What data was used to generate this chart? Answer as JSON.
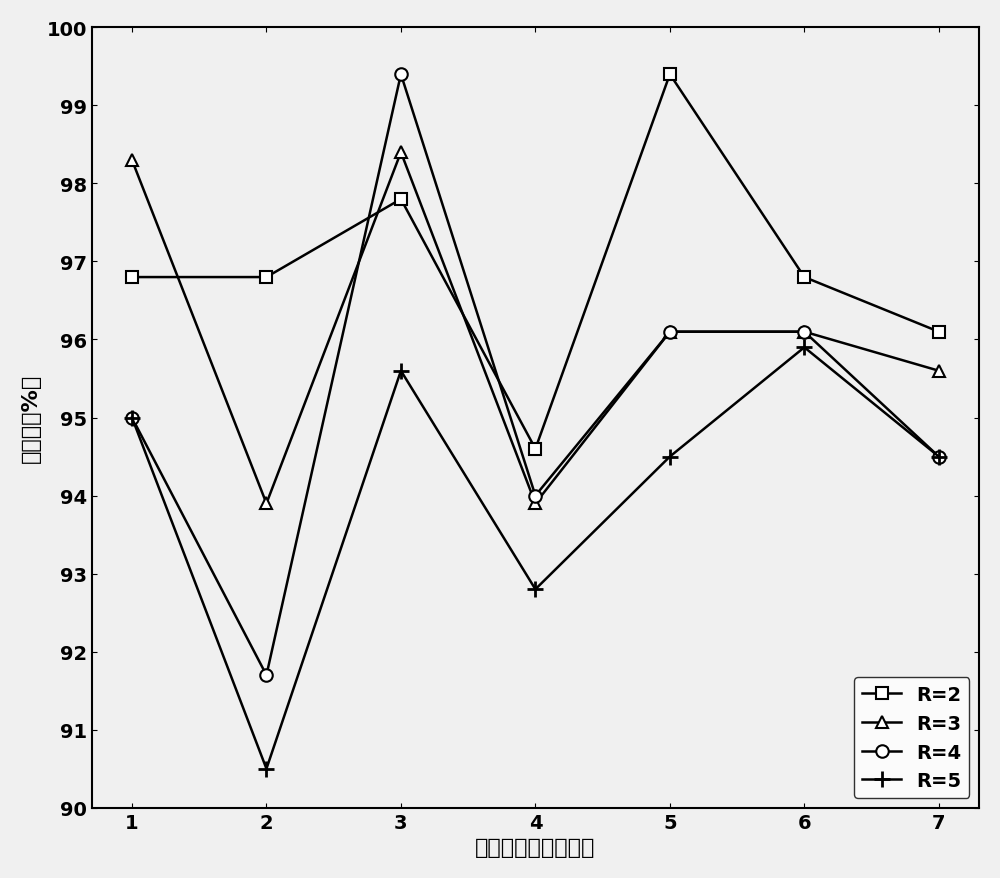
{
  "x": [
    1,
    2,
    3,
    4,
    5,
    6,
    7
  ],
  "R2": [
    96.8,
    96.8,
    97.8,
    94.6,
    99.4,
    96.8,
    96.1
  ],
  "R3": [
    98.3,
    93.9,
    98.4,
    93.9,
    96.1,
    96.1,
    95.6
  ],
  "R4": [
    95.0,
    91.7,
    99.4,
    94.0,
    96.1,
    96.1,
    94.5
  ],
  "R5": [
    95.0,
    90.5,
    95.6,
    92.8,
    94.5,
    95.9,
    94.5
  ],
  "xlabel": "最大循环次数（次）",
  "ylabel": "正确率（%）",
  "xlim": [
    1,
    7
  ],
  "ylim": [
    90,
    100
  ],
  "yticks": [
    90,
    91,
    92,
    93,
    94,
    95,
    96,
    97,
    98,
    99,
    100
  ],
  "xticks": [
    1,
    2,
    3,
    4,
    5,
    6,
    7
  ],
  "legend_labels": [
    "R=2",
    "R=3",
    "R=4",
    "R=5"
  ],
  "line_color": "#000000",
  "marker_R2": "s",
  "marker_R3": "^",
  "marker_R4": "o",
  "marker_R5": "+",
  "markersize": 9,
  "linewidth": 1.8,
  "xlabel_fontsize": 16,
  "ylabel_fontsize": 16,
  "tick_fontsize": 14,
  "legend_fontsize": 14,
  "legend_loc": "lower right",
  "bg_color": "#f0f0f0"
}
